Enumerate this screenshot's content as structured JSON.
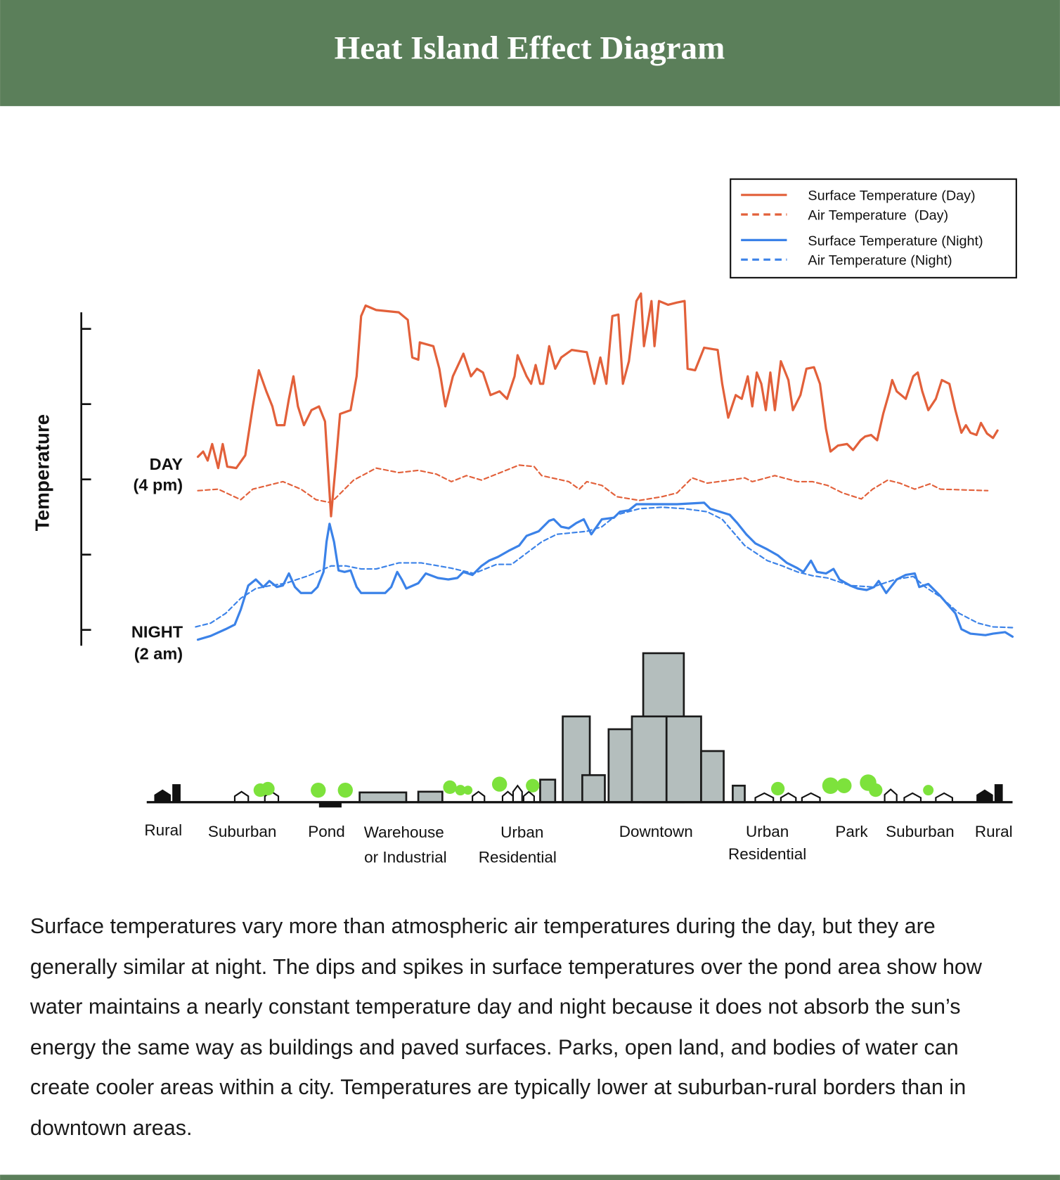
{
  "header": {
    "title": "Heat Island Effect Diagram"
  },
  "diagram": {
    "y_label": "Temperature",
    "day_label": [
      "DAY",
      "(4 pm)"
    ],
    "night_label": [
      "NIGHT",
      "(2 am)"
    ],
    "legend": [
      "Surface Temperature (Day)",
      "Air Temperature  (Day)",
      "Surface Temperature (Night)",
      "Air Temperature (Night)"
    ],
    "zones": [
      [
        "Rural"
      ],
      [
        "Suburban"
      ],
      [
        "Pond"
      ],
      [
        "Warehouse",
        "or Industrial"
      ],
      [
        "Urban",
        "Residential"
      ],
      [
        "Downtown"
      ],
      [
        "Urban",
        "Residential"
      ],
      [
        "Park"
      ],
      [
        "Suburban"
      ],
      [
        "Rural"
      ]
    ]
  },
  "caption": "Surface temperatures vary more than atmospheric air temperatures during the day, but they are generally similar at night. The dips and spikes in surface temperatures over the pond area show how water maintains a nearly constant temperature day and night because it does not absorb the sun’s energy the same way as buildings and paved surfaces. Parks, open land, and bodies of water can create cooler areas within a city. Temperatures are typically lower at suburban-rural borders than in downtown areas."
}
